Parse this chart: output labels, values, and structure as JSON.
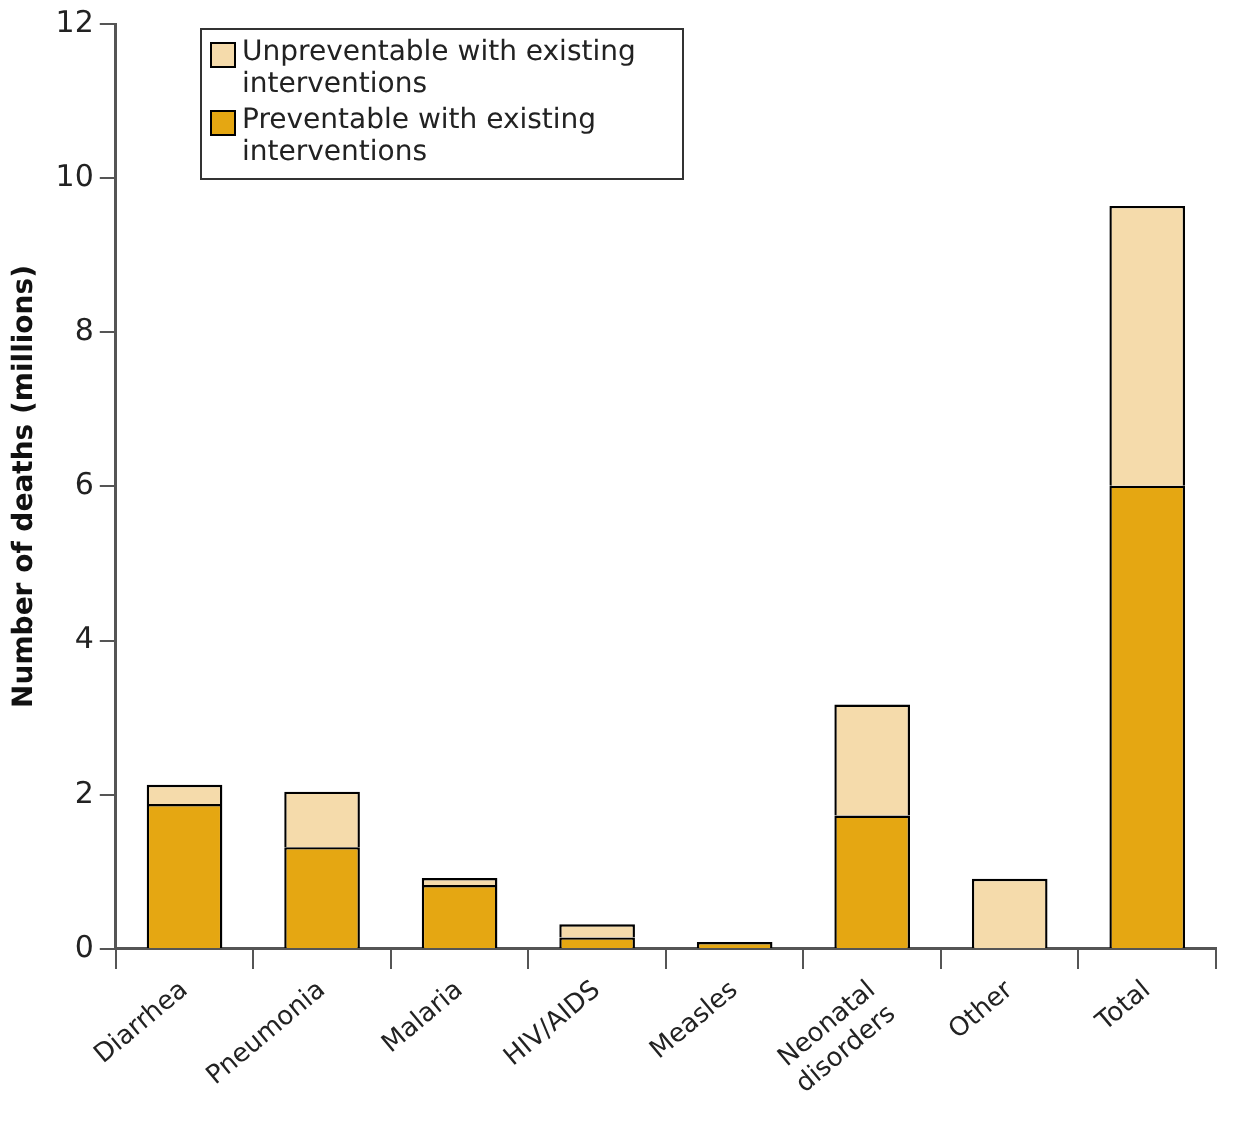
{
  "chart_data": {
    "type": "bar",
    "ylabel": "Number of deaths (millions)",
    "categories": [
      "Diarrhea",
      "Pneumonia",
      "Malaria",
      "HIV/AIDS",
      "Measles",
      "Neonatal disorders",
      "Other",
      "Total"
    ],
    "series": [
      {
        "name": "Preventable with existing interventions",
        "color": "#e5a712",
        "values": [
          1.88,
          1.32,
          0.83,
          0.15,
          0.09,
          1.73,
          0,
          6.01
        ]
      },
      {
        "name": "Unpreventable with existing interventions",
        "color": "#f5dbab",
        "values": [
          0.25,
          0.72,
          0.09,
          0.17,
          0,
          1.44,
          0.91,
          3.63
        ]
      }
    ],
    "stacked": true,
    "ylim": [
      0,
      12
    ],
    "yticks": [
      0,
      2,
      4,
      6,
      8,
      10,
      12
    ],
    "grid": false,
    "legend": "top left"
  }
}
